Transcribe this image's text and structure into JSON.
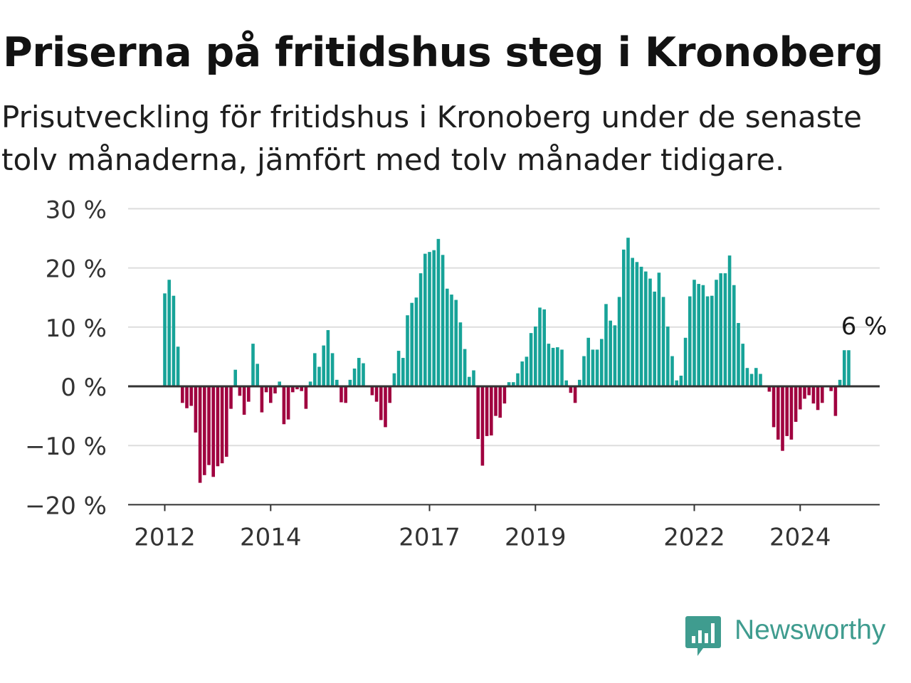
{
  "title": "Priserna på fritidshus steg i Kronoberg",
  "subtitle": "Prisutveckling för fritidshus i Kronoberg under de senaste tolv månaderna, jämfört med tolv månader tidigare.",
  "brand": "Newsworthy",
  "colors": {
    "positive": "#17a398",
    "negative": "#a0003f",
    "grid": "#dddddd",
    "axis": "#333333",
    "brand": "#3f9c8f"
  },
  "chart_data": {
    "type": "bar",
    "start": "2012-01",
    "frequency": "monthly",
    "ylim": [
      -20,
      30
    ],
    "yticks": [
      30,
      20,
      10,
      0,
      -10,
      -20
    ],
    "ytick_labels": [
      "30 %",
      "20 %",
      "10 %",
      "0 %",
      "−10 %",
      "−20 %"
    ],
    "xtick_labels": [
      {
        "label": "2012",
        "date": "2012-01"
      },
      {
        "label": "2014",
        "date": "2014-01"
      },
      {
        "label": "2017",
        "date": "2017-01"
      },
      {
        "label": "2019",
        "date": "2019-01"
      },
      {
        "label": "2022",
        "date": "2022-01"
      },
      {
        "label": "2024",
        "date": "2024-01"
      }
    ],
    "values": [
      15.7,
      18,
      15.3,
      6.7,
      -2.8,
      -3.7,
      -3.3,
      -7.8,
      -16.3,
      -15,
      -13.3,
      -15.3,
      -13.5,
      -13,
      -11.9,
      -3.8,
      2.8,
      -1.6,
      -4.8,
      -2.6,
      7.2,
      3.8,
      -4.4,
      -1,
      -2.8,
      -1.2,
      0.8,
      -6.4,
      -5.6,
      -1,
      -0.5,
      -0.8,
      -3.8,
      0.8,
      5.6,
      3.3,
      6.9,
      9.5,
      5.6,
      1.1,
      -2.7,
      -2.8,
      1.1,
      3,
      4.8,
      3.9,
      0,
      -1.5,
      -2.6,
      -5.7,
      -6.9,
      -2.8,
      2.2,
      6,
      4.8,
      12,
      14.1,
      15,
      19.1,
      22.4,
      22.7,
      23,
      24.9,
      22.2,
      16.5,
      15.5,
      14.6,
      10.8,
      6.3,
      1.6,
      2.7,
      -8.9,
      -13.4,
      -8.4,
      -8.3,
      -5,
      -5.3,
      -2.9,
      0.7,
      0.7,
      2.2,
      4.2,
      5,
      9,
      10.1,
      13.3,
      13,
      7.2,
      6.5,
      6.6,
      6.2,
      1,
      -1.1,
      -2.8,
      1.1,
      5.1,
      8.2,
      6.2,
      6.2,
      8,
      13.9,
      11.1,
      10.3,
      15.1,
      23.1,
      25.1,
      21.7,
      21,
      20.2,
      19.4,
      18.2,
      16,
      19.2,
      15.1,
      10.1,
      5.1,
      1,
      1.8,
      8.2,
      15.2,
      18,
      17.3,
      17.1,
      15.2,
      15.3,
      18,
      19.1,
      19.1,
      22.1,
      17.1,
      10.7,
      7.2,
      3.1,
      2.1,
      3.1,
      2.1,
      0,
      -0.9,
      -6.9,
      -9,
      -10.9,
      -8.4,
      -9,
      -6,
      -3.9,
      -2.1,
      -1.5,
      -2.9,
      -4,
      -2.8,
      0,
      -0.8,
      -5,
      1.1,
      6.1,
      6.1
    ],
    "annotation": {
      "label": "6 %",
      "date": "2025-03"
    }
  }
}
